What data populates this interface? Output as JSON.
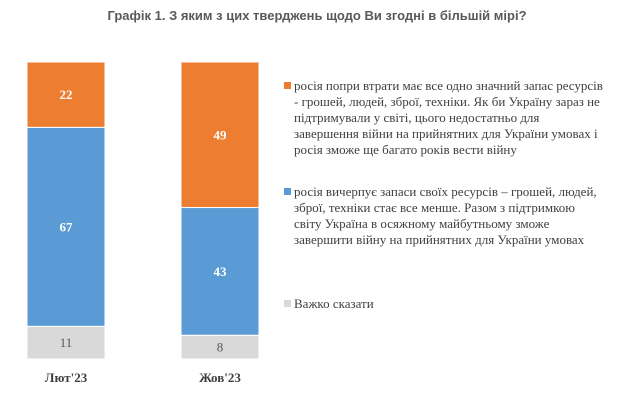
{
  "title": "Графік 1. З яким з цих тверджень щодо Ви згодні в більшій мірі?",
  "chart_data": {
    "type": "bar",
    "stacked": true,
    "categories": [
      "Лют'23",
      "Жов'23"
    ],
    "series": [
      {
        "name": "Важко сказати",
        "values": [
          11,
          8
        ],
        "color": "#d9d9d9"
      },
      {
        "name": "росія вичерпує запаси своїх ресурсів – грошей, людей, зброї, техніки стає все менше. Разом з підтримкою світу Україна в осяжному майбутньому зможе завершити війну на прийнятних для України умовах",
        "values": [
          67,
          43
        ],
        "color": "#5b9bd5"
      },
      {
        "name": "росія попри втрати має все одно значний запас ресурсів - грошей, людей, зброї, техніки. Як би Україну зараз не підтримували у світі, цього недостатньо для завершення війни на прийнятних для України умовах і росія зможе ще багато років вести війну",
        "values": [
          22,
          49
        ],
        "color": "#ed7d31"
      }
    ],
    "label_colors": [
      "#595959",
      "#ffffff",
      "#ffffff"
    ],
    "ylim": [
      0,
      100
    ],
    "legend_position": "right",
    "grid": false
  }
}
